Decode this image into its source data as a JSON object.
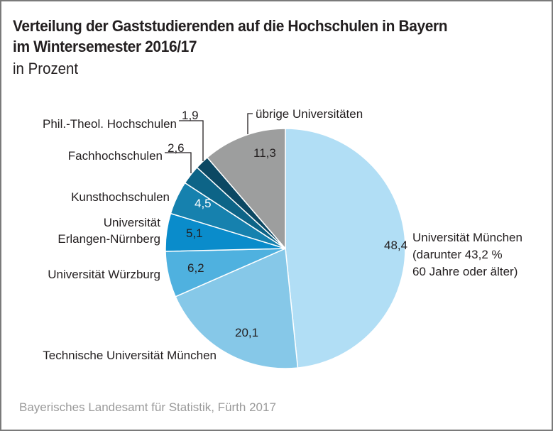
{
  "chart_data": {
    "type": "pie",
    "title": "Verteilung der Gaststudierenden auf die Hochschulen in Bayern",
    "title_line2": "im Wintersemester 2016/17",
    "subtitle": "in Prozent",
    "start": "top",
    "direction": "clockwise",
    "slices": [
      {
        "label": "Universität München",
        "label_lines": [
          "Universität München",
          "(darunter 43,2 %",
          "60 Jahre oder älter)"
        ],
        "value": 48.4,
        "value_label": "48,4",
        "color": "#b1def5",
        "value_color": "#231f20"
      },
      {
        "label": "Technische Universität München",
        "label_lines": [
          "Technische Universität München"
        ],
        "value": 20.1,
        "value_label": "20,1",
        "color": "#86c8e8",
        "value_color": "#231f20"
      },
      {
        "label": "Universität Würzburg",
        "label_lines": [
          "Universität Würzburg"
        ],
        "value": 6.2,
        "value_label": "6,2",
        "color": "#4fb1df",
        "value_color": "#231f20"
      },
      {
        "label": "Universität Erlangen-Nürnberg",
        "label_lines": [
          "Universität",
          "Erlangen-Nürnberg"
        ],
        "value": 5.1,
        "value_label": "5,1",
        "color": "#0a8ccb",
        "value_color": "#231f20"
      },
      {
        "label": "Kunsthochschulen",
        "label_lines": [
          "Kunsthochschulen"
        ],
        "value": 4.5,
        "value_label": "4,5",
        "color": "#1681ae",
        "value_color": "#ffffff"
      },
      {
        "label": "Fachhochschulen",
        "label_lines": [
          "Fachhochschulen"
        ],
        "value": 2.6,
        "value_label": "2,6",
        "color": "#0d6487",
        "value_color": "#231f20"
      },
      {
        "label": "Phil.-Theol. Hochschulen",
        "label_lines": [
          "Phil.-Theol. Hochschulen"
        ],
        "value": 1.9,
        "value_label": "1,9",
        "color": "#0c4863",
        "value_color": "#231f20"
      },
      {
        "label": "übrige Universitäten",
        "label_lines": [
          "übrige Universitäten"
        ],
        "value": 11.3,
        "value_label": "11,3",
        "color": "#9d9e9e",
        "value_color": "#231f20"
      }
    ]
  },
  "source": "Bayerisches Landesamt für Statistik, Fürth 2017"
}
